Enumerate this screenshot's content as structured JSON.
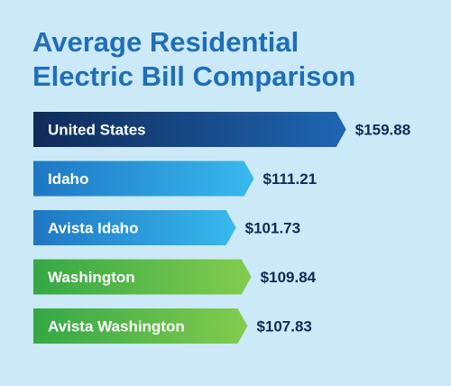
{
  "chart_data": {
    "type": "bar",
    "orientation": "horizontal",
    "title": "Average Residential Electric Bill Comparison",
    "title_lines": [
      "Average Residential",
      "Electric Bill Comparison"
    ],
    "categories": [
      "United States",
      "Idaho",
      "Avista Idaho",
      "Washington",
      "Avista Washington"
    ],
    "values": [
      159.88,
      111.21,
      101.73,
      109.84,
      107.83
    ],
    "value_labels": [
      "$159.88",
      "$111.21",
      "$101.73",
      "$109.84",
      "$107.83"
    ],
    "bar_colors": [
      [
        "#0f2a57",
        "#1f66b3"
      ],
      [
        "#1e77c4",
        "#38b9ee"
      ],
      [
        "#1e77c4",
        "#38b9ee"
      ],
      [
        "#34a845",
        "#83cc4e"
      ],
      [
        "#34a845",
        "#83cc4e"
      ]
    ],
    "xlabel": "",
    "ylabel": "",
    "grid": false,
    "legend": "none"
  },
  "colors": {
    "background": "#cce9f8",
    "title": "#1f6fb8",
    "value_text": "#0f2a55"
  }
}
